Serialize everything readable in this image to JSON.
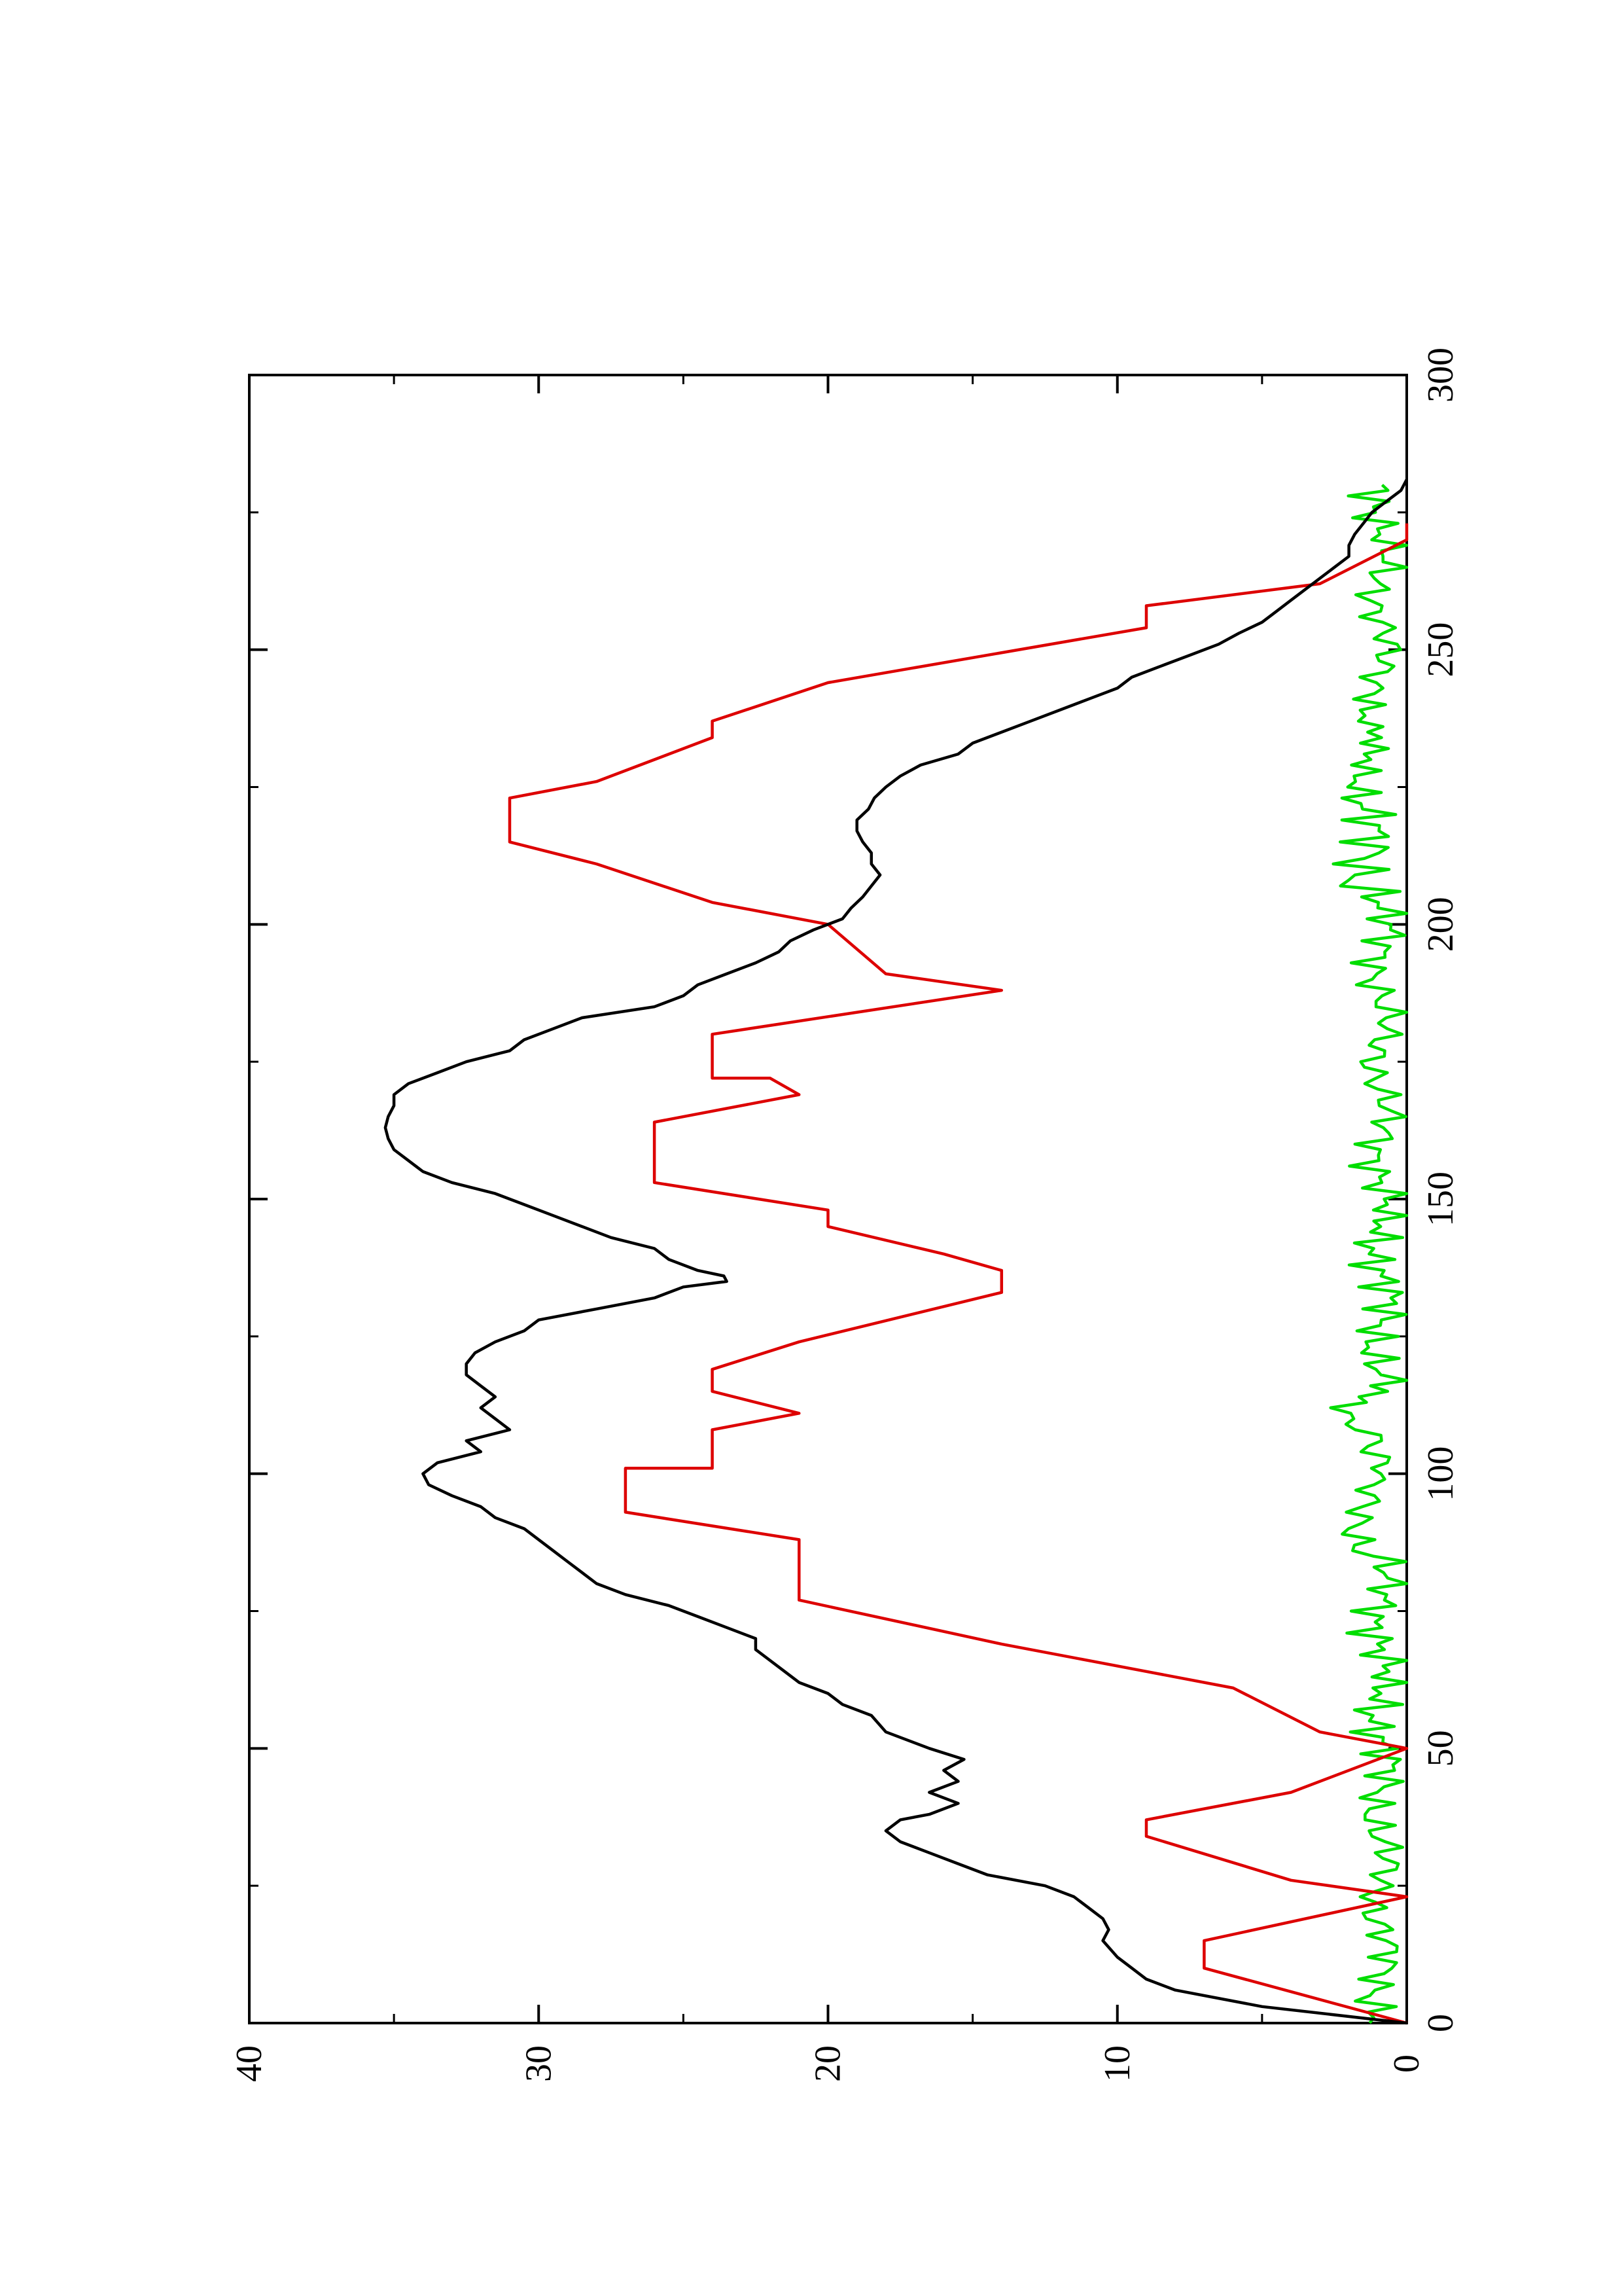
{
  "chart_data": {
    "type": "line",
    "orientation": "rotated-90-clockwise",
    "title": "",
    "xlabel": "",
    "ylabel": "",
    "xlim": [
      0,
      300
    ],
    "ylim": [
      0,
      40
    ],
    "x_ticks": [
      0,
      50,
      100,
      150,
      200,
      250,
      300
    ],
    "x_tick_labels": [
      "0",
      "50",
      "100",
      "150",
      "200",
      "250",
      "300"
    ],
    "y_ticks": [
      0,
      10,
      20,
      30,
      40
    ],
    "y_tick_labels": [
      "0",
      "10",
      "20",
      "30",
      "40"
    ],
    "grid": false,
    "legend": "none",
    "series": [
      {
        "color": "#000000",
        "x": [
          0,
          3,
          6,
          8,
          10,
          12,
          15,
          17,
          19,
          21,
          23,
          25,
          27,
          29,
          31,
          33,
          35,
          37,
          38,
          40,
          42,
          44,
          46,
          48,
          50,
          53,
          56,
          58,
          60,
          62,
          64,
          66,
          68,
          70,
          72,
          74,
          76,
          78,
          80,
          82,
          84,
          86,
          88,
          90,
          92,
          94,
          96,
          98,
          100,
          102,
          104,
          106,
          108,
          110,
          112,
          114,
          116,
          118,
          120,
          122,
          124,
          126,
          128,
          130,
          132,
          134,
          135,
          136,
          137,
          139,
          141,
          143,
          145,
          147,
          149,
          151,
          153,
          155,
          157,
          159,
          161,
          163,
          165,
          167,
          169,
          171,
          173,
          175,
          177,
          179,
          181,
          183,
          185,
          187,
          189,
          191,
          193,
          195,
          197,
          199,
          201,
          203,
          205,
          207,
          209,
          211,
          213,
          215,
          217,
          219,
          221,
          223,
          225,
          227,
          229,
          231,
          233,
          235,
          237,
          239,
          241,
          243,
          245,
          247,
          249,
          251,
          253,
          255,
          257,
          259,
          261,
          263,
          265,
          267,
          269,
          271,
          273,
          275,
          277,
          279,
          281
        ],
        "values": [
          0,
          5,
          8,
          9,
          9.5,
          10,
          10.5,
          10.3,
          10.5,
          11,
          11.5,
          12.5,
          14.5,
          15.5,
          16.5,
          17.5,
          18,
          17.5,
          16.5,
          15.5,
          16.5,
          15.5,
          16,
          15.3,
          16.5,
          18,
          18.5,
          19.5,
          20,
          21,
          21.5,
          22,
          22.5,
          22.5,
          23.5,
          24.5,
          25.5,
          27,
          28,
          28.5,
          29,
          29.5,
          30,
          30.5,
          31.5,
          32,
          33,
          33.8,
          34,
          33.5,
          32,
          32.5,
          31,
          31.5,
          32,
          31.5,
          32,
          32.5,
          32.5,
          32.2,
          31.5,
          30.5,
          30,
          28,
          26,
          25,
          23.5,
          23.6,
          24.5,
          25.5,
          26,
          27.5,
          28.5,
          29.5,
          30.5,
          31.5,
          33,
          34,
          34.5,
          35,
          35.2,
          35.3,
          35.2,
          35,
          35,
          34.5,
          33.5,
          32.5,
          31,
          30.5,
          29.5,
          28.5,
          26,
          25,
          24.5,
          23.5,
          22.5,
          21.7,
          21.3,
          20.5,
          19.5,
          19.2,
          18.8,
          18.5,
          18.2,
          18.5,
          18.5,
          18.8,
          19,
          19,
          18.6,
          18.4,
          18,
          17.5,
          16.8,
          15.5,
          15,
          14,
          13,
          12,
          11,
          10,
          9.5,
          8.5,
          7.5,
          6.5,
          5.8,
          5,
          4.5,
          4,
          3.5,
          3,
          2.5,
          2,
          2,
          1.8,
          1.5,
          1.2,
          0.7,
          0.2,
          0
        ]
      },
      {
        "color": "#dd0000",
        "x": [
          0,
          10,
          15,
          23,
          23,
          26,
          34,
          37,
          37,
          42,
          50,
          50,
          53,
          61,
          64,
          64,
          69,
          77,
          82,
          82,
          88,
          88,
          93,
          93,
          101,
          101,
          108,
          108,
          111,
          111,
          115,
          115,
          119,
          119,
          124,
          124,
          133,
          137,
          137,
          140,
          145,
          148,
          148,
          153,
          153,
          164,
          169,
          169,
          172,
          172,
          180,
          180,
          188,
          188,
          191,
          191,
          200,
          200,
          204,
          204,
          211,
          211,
          215,
          215,
          223,
          223,
          226,
          234,
          237,
          237,
          244,
          244,
          254,
          254,
          258,
          262,
          262,
          270,
          270,
          273
        ],
        "values": [
          0,
          7,
          7,
          0,
          0,
          4,
          9,
          9,
          9,
          4,
          0,
          0,
          3,
          6,
          9,
          9,
          14,
          21,
          21,
          21,
          21,
          21,
          27,
          27,
          27,
          24,
          24,
          24,
          21,
          21,
          24,
          24,
          24,
          24,
          21,
          21,
          14,
          14,
          14,
          16,
          20,
          20,
          20,
          26,
          26,
          26,
          21,
          21,
          22,
          24,
          24,
          24,
          14,
          14,
          18,
          18,
          20,
          20,
          24,
          24,
          28,
          28,
          31,
          31,
          31,
          31,
          28,
          24,
          24,
          24,
          20,
          20,
          9,
          9,
          9,
          3,
          3,
          0,
          0,
          0
        ]
      },
      {
        "color": "#00dd00",
        "x": [],
        "values": []
      }
    ]
  }
}
